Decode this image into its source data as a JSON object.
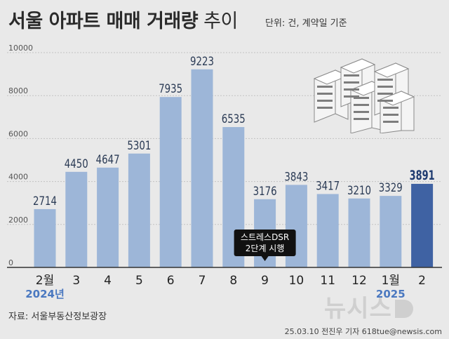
{
  "header": {
    "title": "서울 아파트 매매 거래량",
    "title_suffix": "추이",
    "unit_note": "단위: 건, 계약일 기준"
  },
  "source": "자료: 서울부동산정보광장",
  "credit": "25.03.10 전진우 기자 618tue@newsis.com",
  "watermark": "뉴시스",
  "colors": {
    "background": "#e9e9e9",
    "bar": "#9db6d8",
    "bar_highlight": "#3f62a3",
    "year_label": "#4a78c0",
    "callout_bg": "#111111"
  },
  "chart_data": {
    "type": "bar",
    "categories": [
      "2월",
      "3",
      "4",
      "5",
      "6",
      "7",
      "8",
      "9",
      "10",
      "11",
      "12",
      "1월",
      "2"
    ],
    "year_labels": [
      "2024년",
      "",
      "",
      "",
      "",
      "",
      "",
      "",
      "",
      "",
      "",
      "2025",
      ""
    ],
    "values": [
      2714,
      4450,
      4647,
      5301,
      7935,
      9223,
      6535,
      3176,
      3843,
      3417,
      3210,
      3329,
      3891
    ],
    "value_labels": [
      "2714",
      "4450",
      "4647",
      "5301",
      "7935",
      "9223",
      "6535",
      "3176",
      "3843",
      "3417",
      "3210",
      "3329",
      "3891"
    ],
    "highlight_index": 12,
    "yticks": [
      "0",
      "2000",
      "4000",
      "6000",
      "8000",
      "10000"
    ],
    "ytick_values": [
      0,
      2000,
      4000,
      6000,
      8000,
      10000
    ],
    "ylim": [
      0,
      10000
    ],
    "grid": true,
    "annotation": {
      "category_index": 7,
      "lines": [
        "스트레스DSR",
        "2단계 시행"
      ]
    }
  }
}
